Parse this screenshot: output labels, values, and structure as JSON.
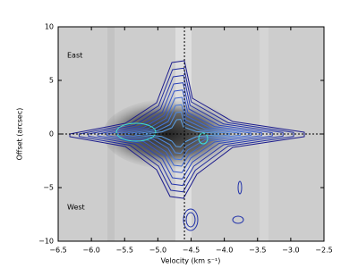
{
  "chart_data": {
    "type": "contour",
    "xlabel": "Velocity (km s⁻¹)",
    "ylabel": "Offset (arcsec)",
    "annotations": [
      "East",
      "West"
    ],
    "xlim": [
      -6.5,
      -2.5
    ],
    "xticks": [
      {
        "value": -6.5,
        "label": "−6.5"
      },
      {
        "value": -6.0,
        "label": "−6.0"
      },
      {
        "value": -5.5,
        "label": "−5.5"
      },
      {
        "value": -5.0,
        "label": "−5.0"
      },
      {
        "value": -4.5,
        "label": "−4.5"
      },
      {
        "value": -4.0,
        "label": "−4.0"
      },
      {
        "value": -3.5,
        "label": "−3.5"
      },
      {
        "value": -3.0,
        "label": "−3.0"
      },
      {
        "value": -2.5,
        "label": "−2.5"
      }
    ],
    "ylim": [
      -10,
      10
    ],
    "yticks": [
      {
        "value": -10,
        "label": "−10"
      },
      {
        "value": -5,
        "label": "−5"
      },
      0,
      5,
      10
    ],
    "vline": -4.6,
    "hline": 0
  }
}
